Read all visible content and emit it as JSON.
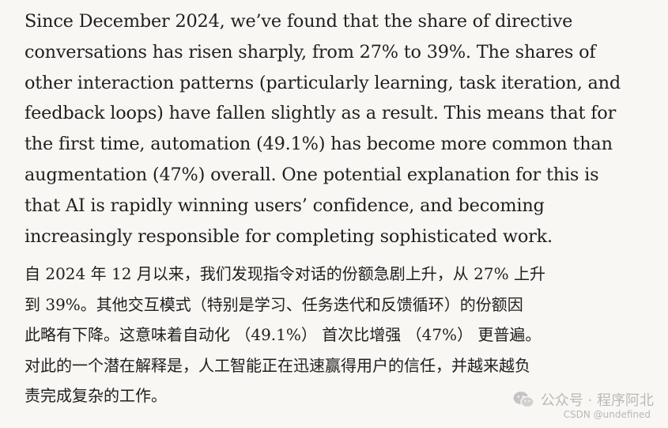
{
  "english_paragraph": {
    "lines": [
      "Since December 2024, we’ve found that the share of directive",
      "conversations has risen sharply, from 27% to 39%. The shares of",
      "other interaction patterns (particularly learning, task iteration, and",
      "feedback loops) have fallen slightly as a result. This means that for",
      "the first time, automation (49.1%) has become more common than",
      "augmentation (47%) overall. One potential explanation for this is",
      "that AI is rapidly winning users’ confidence, and becoming",
      "increasingly responsible for completing sophisticated work."
    ]
  },
  "chinese_paragraph": {
    "lines": [
      "自 2024 年 12 月以来，我们发现指令对话的份额急剧上升，从 27% 上升",
      "到 39%。其他交互模式（特别是学习、任务迭代和反馈循环）的份额因",
      "此略有下降。这意味着自动化 （49.1%） 首次比增强 （47%） 更普遍。",
      "对此的一个潜在解释是，人工智能正在迅速赢得用户的信任，并越来越负",
      "责完成复杂的工作。"
    ]
  },
  "watermark": {
    "icon": "wechat-icon",
    "text": "公众号 · 程序阿北",
    "credit": "CSDN @undefined",
    "color": "#b9b9b9"
  }
}
